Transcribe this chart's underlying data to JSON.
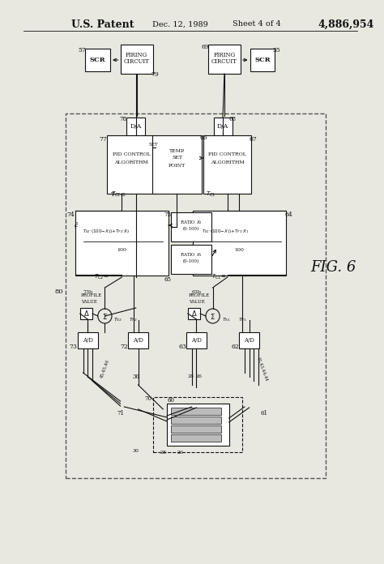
{
  "bg_color": "#e8e8e0",
  "line_color": "#111111",
  "title_left": "U.S. Patent",
  "title_date": "Dec. 12, 1989",
  "title_sheet": "Sheet 4 of 4",
  "title_number": "4,886,954",
  "fig_label": "FIG. 6"
}
